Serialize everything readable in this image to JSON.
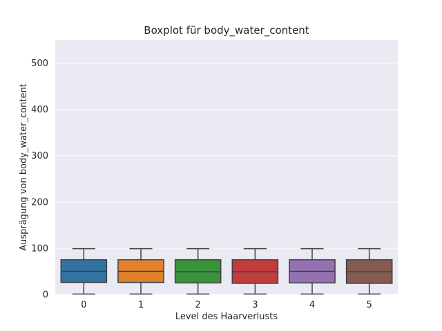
{
  "chart_data": {
    "type": "box",
    "title": "Boxplot für body_water_content",
    "xlabel": "Level des Haarverlusts",
    "ylabel": "Ausprägung von body_water_content",
    "ylim": [
      0,
      550
    ],
    "yticks": [
      0,
      100,
      200,
      300,
      400,
      500
    ],
    "grid": true,
    "categories": [
      "0",
      "1",
      "2",
      "3",
      "4",
      "5"
    ],
    "colors": [
      "#3274a1",
      "#e1812c",
      "#3a923a",
      "#c03d3e",
      "#9372b2",
      "#845b53"
    ],
    "boxes": [
      {
        "whisker_low": 1,
        "q1": 26,
        "median": 50,
        "q3": 75,
        "whisker_high": 99
      },
      {
        "whisker_low": 1,
        "q1": 26,
        "median": 50,
        "q3": 75,
        "whisker_high": 99
      },
      {
        "whisker_low": 1,
        "q1": 25,
        "median": 49,
        "q3": 75,
        "whisker_high": 99
      },
      {
        "whisker_low": 1,
        "q1": 24,
        "median": 49,
        "q3": 75,
        "whisker_high": 99
      },
      {
        "whisker_low": 1,
        "q1": 25,
        "median": 50,
        "q3": 75,
        "whisker_high": 99
      },
      {
        "whisker_low": 1,
        "q1": 24,
        "median": 49,
        "q3": 75,
        "whisker_high": 99
      }
    ]
  }
}
